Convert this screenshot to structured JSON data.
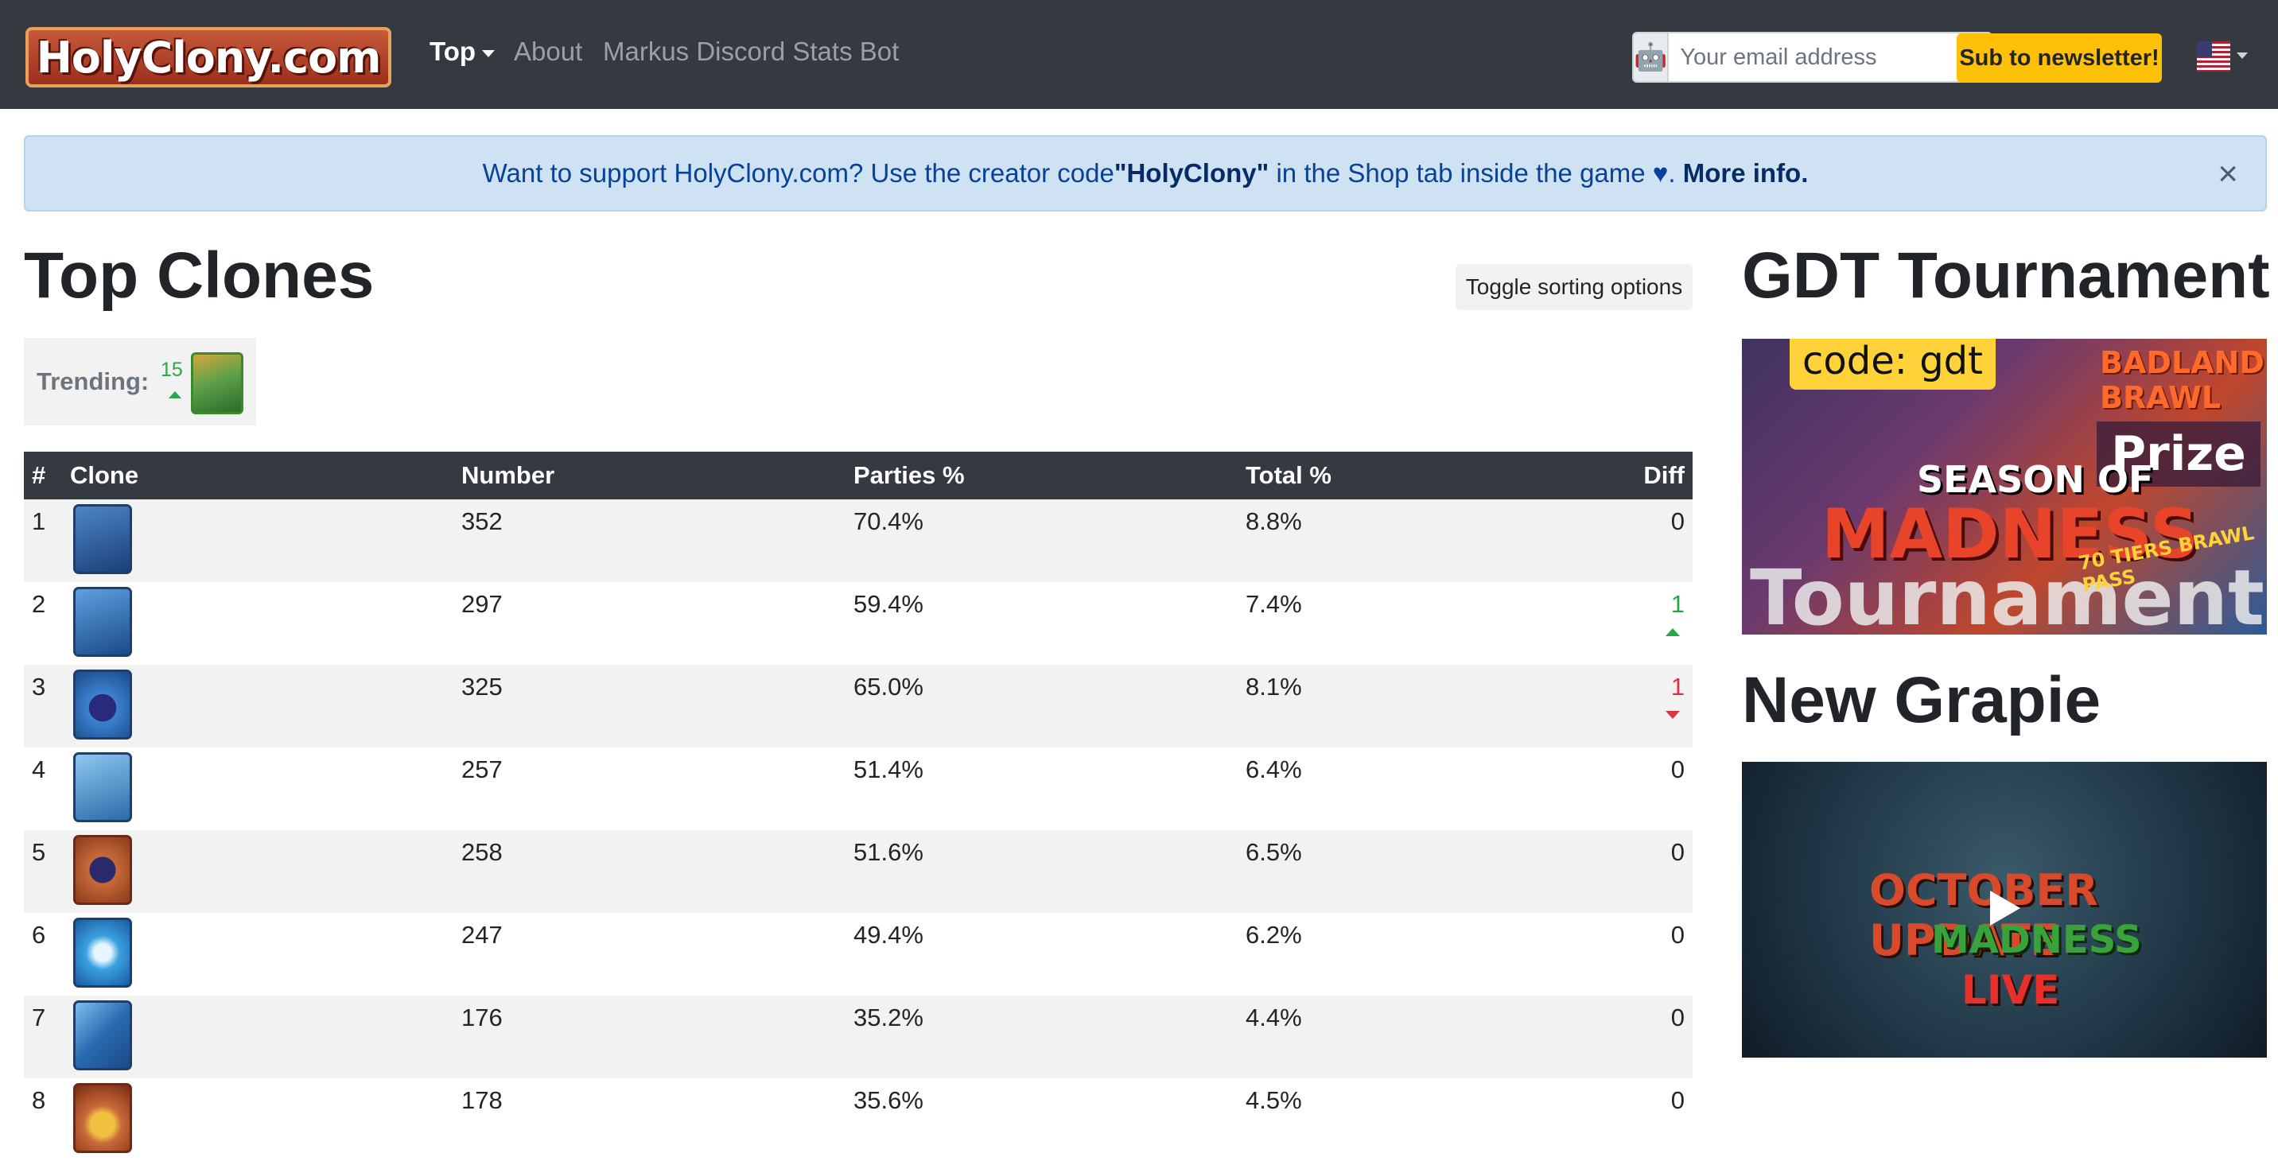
{
  "navbar": {
    "logo_text": "HolyClony.com",
    "links": [
      {
        "label": "Top"
      },
      {
        "label": "About"
      },
      {
        "label": "Markus Discord Stats Bot"
      }
    ],
    "email_placeholder": "Your email address",
    "subscribe_label": "Sub to newsletter!",
    "language": "US"
  },
  "alert": {
    "text_before": "Want to support HolyClony.com? Use the creator code ",
    "code": "\"HolyClony\"",
    "text_after": " in the Shop tab inside the game ♥. ",
    "more_info": "More info.",
    "close_symbol": "×"
  },
  "main": {
    "title": "Top Clones",
    "toggle_label": "Toggle sorting options",
    "trending": {
      "label": "Trending:",
      "count": "15"
    }
  },
  "table": {
    "headers": [
      "#",
      "Clone",
      "Number",
      "Parties %",
      "Total %",
      "Diff"
    ],
    "rows": [
      {
        "rank": "1",
        "number": "352",
        "parties": "70.4%",
        "total": "8.8%",
        "diff": "0",
        "trend": "none"
      },
      {
        "rank": "2",
        "number": "297",
        "parties": "59.4%",
        "total": "7.4%",
        "diff": "1",
        "trend": "up"
      },
      {
        "rank": "3",
        "number": "325",
        "parties": "65.0%",
        "total": "8.1%",
        "diff": "1",
        "trend": "down"
      },
      {
        "rank": "4",
        "number": "257",
        "parties": "51.4%",
        "total": "6.4%",
        "diff": "0",
        "trend": "none"
      },
      {
        "rank": "5",
        "number": "258",
        "parties": "51.6%",
        "total": "6.5%",
        "diff": "0",
        "trend": "none"
      },
      {
        "rank": "6",
        "number": "247",
        "parties": "49.4%",
        "total": "6.2%",
        "diff": "0",
        "trend": "none"
      },
      {
        "rank": "7",
        "number": "176",
        "parties": "35.2%",
        "total": "4.4%",
        "diff": "0",
        "trend": "none"
      },
      {
        "rank": "8",
        "number": "178",
        "parties": "35.6%",
        "total": "4.5%",
        "diff": "0",
        "trend": "none"
      }
    ]
  },
  "sidebar": {
    "tournament_title": "GDT Tournament",
    "banner": {
      "code": "code: gdt",
      "badland": "BADLAND BRAWL",
      "season": "SEASON OF",
      "madness": "MADNESS",
      "tournament": "Tournament",
      "prize": "Prize",
      "tiers": "70 TIERS BRAWL PASS"
    },
    "video_title": "New Grapie",
    "video": {
      "line1": "OCTOBER UPDATE",
      "line2": "MADNESS",
      "line3": "LIVE"
    }
  }
}
